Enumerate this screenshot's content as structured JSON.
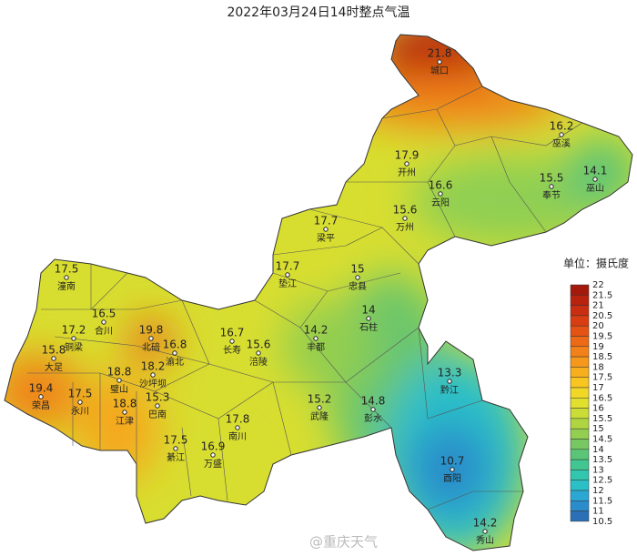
{
  "title": "2022年03月24日14时整点气温",
  "legend": {
    "title": "单位：摄氏度",
    "ticks": [
      22,
      21.5,
      21,
      20.5,
      20,
      19.5,
      19,
      18.5,
      18,
      17.5,
      17,
      16.5,
      16,
      15.5,
      15,
      14.5,
      14,
      13.5,
      13,
      12.5,
      12,
      11.5,
      11,
      10.5
    ],
    "colors": [
      "#a31a0c",
      "#b8230f",
      "#c92e10",
      "#d93d12",
      "#e55314",
      "#ec6a16",
      "#f18118",
      "#f5981b",
      "#f8af1e",
      "#f8c521",
      "#f1d827",
      "#e1e02e",
      "#c9dd36",
      "#afd641",
      "#93ce50",
      "#77c862",
      "#5bc577",
      "#42c691",
      "#31c6ad",
      "#2bbfc8",
      "#2aa8d3",
      "#2b8ccb",
      "#2b6fb6"
    ]
  },
  "stations": [
    {
      "name": "城口",
      "value": 21.8
    },
    {
      "name": "巫溪",
      "value": 16.2
    },
    {
      "name": "开州",
      "value": 17.9
    },
    {
      "name": "云阳",
      "value": 16.6
    },
    {
      "name": "奉节",
      "value": 15.5
    },
    {
      "name": "巫山",
      "value": 14.1
    },
    {
      "name": "万州",
      "value": 15.6
    },
    {
      "name": "梁平",
      "value": 17.7
    },
    {
      "name": "垫江",
      "value": 17.7
    },
    {
      "name": "忠县",
      "value": 15
    },
    {
      "name": "石柱",
      "value": 14
    },
    {
      "name": "潼南",
      "value": 17.5
    },
    {
      "name": "合川",
      "value": 16.5
    },
    {
      "name": "铜梁",
      "value": 17.2
    },
    {
      "name": "北碚",
      "value": 19.8
    },
    {
      "name": "渝北",
      "value": 16.8
    },
    {
      "name": "长寿",
      "value": 16.7
    },
    {
      "name": "涪陵",
      "value": 15.6
    },
    {
      "name": "丰都",
      "value": 14.2
    },
    {
      "name": "大足",
      "value": 15.8
    },
    {
      "name": "璧山",
      "value": 18.8
    },
    {
      "name": "沙坪坝",
      "value": 18.2
    },
    {
      "name": "荣昌",
      "value": 19.4
    },
    {
      "name": "永川",
      "value": 17.5
    },
    {
      "name": "江津",
      "value": 18.8
    },
    {
      "name": "巴南",
      "value": 15.3
    },
    {
      "name": "武隆",
      "value": 15.2
    },
    {
      "name": "彭水",
      "value": 14.8
    },
    {
      "name": "黔江",
      "value": 13.3
    },
    {
      "name": "南川",
      "value": 17.8
    },
    {
      "name": "綦江",
      "value": 17.5
    },
    {
      "name": "万盛",
      "value": 16.9
    },
    {
      "name": "酉阳",
      "value": 10.7
    },
    {
      "name": "秀山",
      "value": 14.2
    }
  ],
  "watermark": "@重庆天气"
}
